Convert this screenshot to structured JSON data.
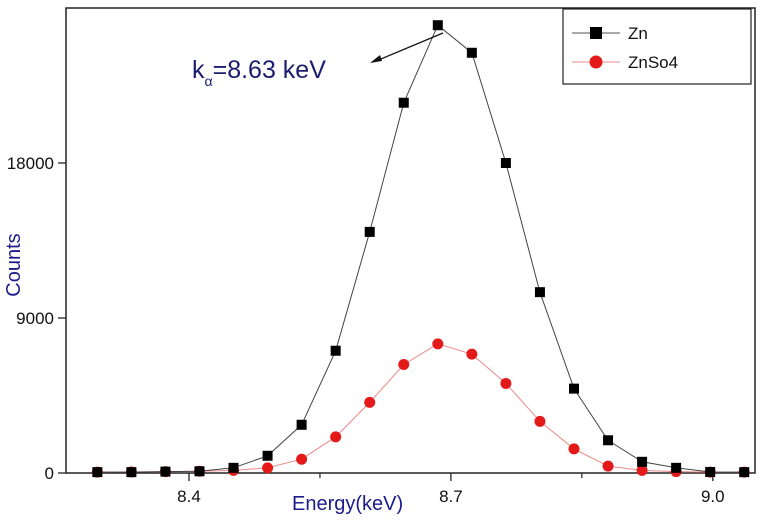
{
  "chart_data": {
    "type": "line",
    "title": "",
    "xlabel": "Energy(keV)",
    "ylabel": "Counts",
    "xlim": [
      8.259,
      9.05
    ],
    "ylim": [
      0,
      27000
    ],
    "xticks": [
      {
        "value": 8.4,
        "label": "8.4"
      },
      {
        "value": 8.7,
        "label": "8.7"
      },
      {
        "value": 9.0,
        "label": "9.0"
      }
    ],
    "xminor": [
      8.55,
      8.85
    ],
    "yticks": [
      {
        "value": 0,
        "label": "0"
      },
      {
        "value": 9000,
        "label": "9000"
      },
      {
        "value": 18000,
        "label": "18000"
      }
    ],
    "grid": false,
    "legend_position": "top-right",
    "x": [
      8.295,
      8.334,
      8.373,
      8.412,
      8.451,
      8.49,
      8.529,
      8.568,
      8.607,
      8.646,
      8.685,
      8.724,
      8.763,
      8.802,
      8.841,
      8.88,
      8.919,
      8.958,
      8.997,
      9.036
    ],
    "series": [
      {
        "name": "Zn",
        "color": "#000000",
        "marker": "square",
        "values": [
          50,
          50,
          80,
          100,
          300,
          1000,
          2800,
          7100,
          14000,
          21500,
          26000,
          24400,
          18000,
          10500,
          4900,
          1900,
          650,
          300,
          60,
          50
        ]
      },
      {
        "name": "ZnSo4",
        "color": "#e41a1a",
        "marker": "circle",
        "values": [
          50,
          60,
          80,
          100,
          150,
          300,
          800,
          2100,
          4100,
          6300,
          7500,
          6900,
          5200,
          3000,
          1400,
          400,
          150,
          80,
          50,
          50
        ]
      }
    ],
    "annotation": {
      "prefix": "k",
      "subscript": "α",
      "text": "=8.63 keV",
      "points_to_x": 8.685
    }
  }
}
